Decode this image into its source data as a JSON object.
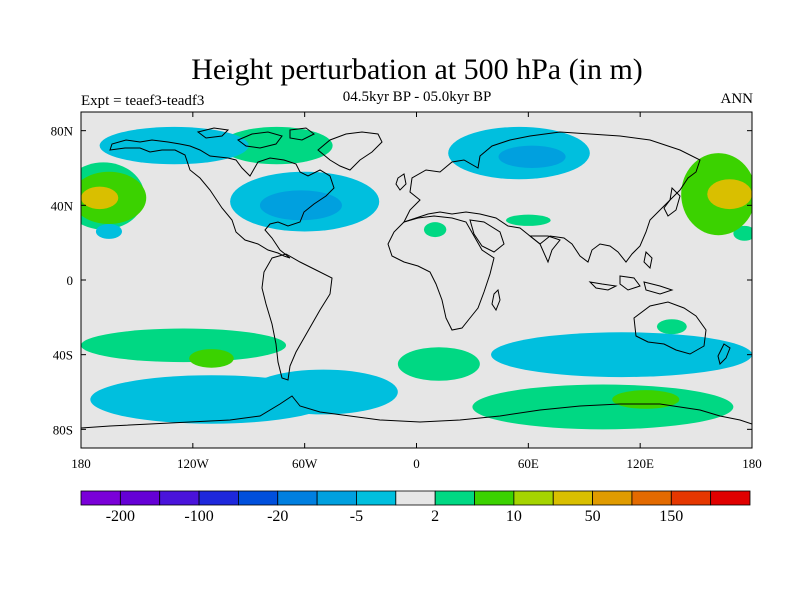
{
  "title": "Height perturbation at 500 hPa (in m)",
  "subtitle": "04.5kyr BP - 05.0kyr BP",
  "experiment": "Expt = teaef3-teadf3",
  "season": "ANN",
  "map": {
    "lat_ticks": [
      {
        "value": 80,
        "label": "80N"
      },
      {
        "value": 40,
        "label": "40N"
      },
      {
        "value": 0,
        "label": "0"
      },
      {
        "value": -40,
        "label": "40S"
      },
      {
        "value": -80,
        "label": "80S"
      }
    ],
    "lon_ticks": [
      {
        "value": -180,
        "label": "180"
      },
      {
        "value": -120,
        "label": "120W"
      },
      {
        "value": -60,
        "label": "60W"
      },
      {
        "value": 0,
        "label": "0"
      },
      {
        "value": 60,
        "label": "60E"
      },
      {
        "value": 120,
        "label": "120E"
      },
      {
        "value": 180,
        "label": "180"
      }
    ],
    "background_color": "#e6e6e6",
    "anomaly_regions": [
      {
        "name": "N Pacific high",
        "lon": -165,
        "lat": 44,
        "rx": 20,
        "ry": 14,
        "level": 2
      },
      {
        "name": "N Pacific high core",
        "lon": -170,
        "lat": 44,
        "rx": 10,
        "ry": 6,
        "level": 4
      },
      {
        "name": "N Pacific high edge",
        "lon": -168,
        "lat": 45,
        "rx": 22,
        "ry": 18,
        "level": 1
      },
      {
        "name": "NW Pacific high",
        "lon": 162,
        "lat": 46,
        "rx": 20,
        "ry": 22,
        "level": 2
      },
      {
        "name": "NW Pacific high core",
        "lon": 168,
        "lat": 46,
        "rx": 12,
        "ry": 8,
        "level": 4
      },
      {
        "name": "NE Canada high",
        "lon": -75,
        "lat": 72,
        "rx": 30,
        "ry": 10,
        "level": 1
      },
      {
        "name": "Arctic cyclone",
        "lon": -130,
        "lat": 72,
        "rx": 40,
        "ry": 10,
        "level": -1
      },
      {
        "name": "N Atlantic low",
        "lon": -60,
        "lat": 42,
        "rx": 40,
        "ry": 16,
        "level": -1
      },
      {
        "name": "N Atlantic low core",
        "lon": -62,
        "lat": 40,
        "rx": 22,
        "ry": 8,
        "level": -2
      },
      {
        "name": "Siberia low",
        "lon": 55,
        "lat": 68,
        "rx": 38,
        "ry": 14,
        "level": -1
      },
      {
        "name": "Siberia low core",
        "lon": 62,
        "lat": 66,
        "rx": 18,
        "ry": 6,
        "level": -2
      },
      {
        "name": "Africa high",
        "lon": 10,
        "lat": 27,
        "rx": 6,
        "ry": 4,
        "level": 1
      },
      {
        "name": "Arabia high",
        "lon": 60,
        "lat": 32,
        "rx": 12,
        "ry": 3,
        "level": 1
      },
      {
        "name": "E Pacific low",
        "lon": -165,
        "lat": 26,
        "rx": 7,
        "ry": 4,
        "level": -1
      },
      {
        "name": "Pacific W high",
        "lon": 176,
        "lat": 25,
        "rx": 6,
        "ry": 4,
        "level": 1
      },
      {
        "name": "S Pacific high band",
        "lon": -125,
        "lat": -35,
        "rx": 55,
        "ry": 9,
        "level": 1
      },
      {
        "name": "S Pacific high core",
        "lon": -110,
        "lat": -42,
        "rx": 12,
        "ry": 5,
        "level": 2
      },
      {
        "name": "S Pacific low band",
        "lon": -110,
        "lat": -64,
        "rx": 65,
        "ry": 13,
        "level": -1
      },
      {
        "name": "S Atlantic high",
        "lon": 12,
        "lat": -45,
        "rx": 22,
        "ry": 9,
        "level": 1
      },
      {
        "name": "Indian Ocean low",
        "lon": 110,
        "lat": -40,
        "rx": 70,
        "ry": 12,
        "level": -1
      },
      {
        "name": "Australia high",
        "lon": 137,
        "lat": -25,
        "rx": 8,
        "ry": 4,
        "level": 1
      },
      {
        "name": "S Indian high band",
        "lon": 100,
        "lat": -68,
        "rx": 70,
        "ry": 12,
        "level": 1
      },
      {
        "name": "S Indian high core",
        "lon": 123,
        "lat": -64,
        "rx": 18,
        "ry": 5,
        "level": 2
      },
      {
        "name": "S Atlantic low",
        "lon": -50,
        "lat": -60,
        "rx": 40,
        "ry": 12,
        "level": -1
      }
    ]
  },
  "colorbar": {
    "colors": [
      "#7a00d8",
      "#6500d6",
      "#4a13db",
      "#1e28dc",
      "#004fdc",
      "#007fe0",
      "#00a0df",
      "#00bfde",
      "#e6e6e6",
      "#00d883",
      "#3bd200",
      "#a5d400",
      "#d9bf00",
      "#e09b00",
      "#e36a00",
      "#e53700",
      "#e00000"
    ],
    "labels": [
      {
        "index": 1,
        "text": "-200"
      },
      {
        "index": 3,
        "text": "-100"
      },
      {
        "index": 5,
        "text": "-20"
      },
      {
        "index": 7,
        "text": "-5"
      },
      {
        "index": 9,
        "text": "2"
      },
      {
        "index": 11,
        "text": "10"
      },
      {
        "index": 13,
        "text": "50"
      },
      {
        "index": 15,
        "text": "150"
      }
    ]
  }
}
